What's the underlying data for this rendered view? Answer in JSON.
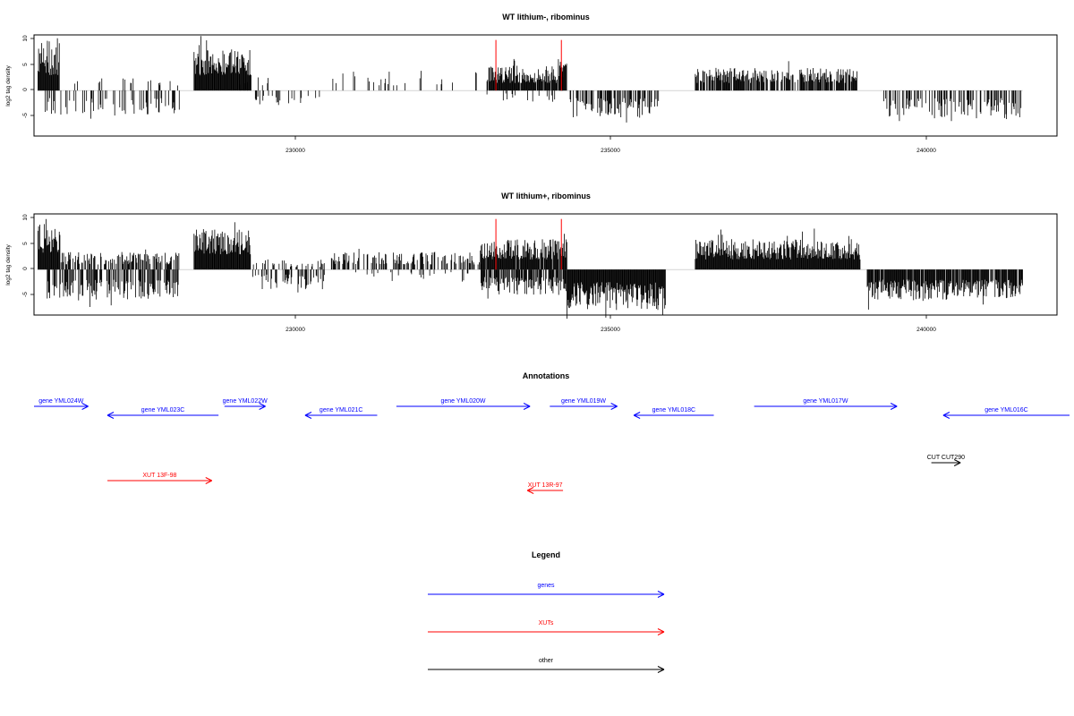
{
  "chart_data": [
    {
      "type": "bar",
      "title": "WT lithium-, ribominus",
      "ylabel": "log2 tag density",
      "xlim": [
        226500,
        241970
      ],
      "ylim": [
        -9,
        11
      ],
      "y_ticks": [
        "10",
        "5",
        "0",
        "-5"
      ],
      "x_ticks": [
        "230000",
        "235000",
        "240000"
      ],
      "grid": false,
      "marker_lines": {
        "x": [
          233485,
          234475
        ],
        "color": "#ff0000"
      },
      "blocks": [
        {
          "x": [
            226560,
            226890
          ],
          "y": [
            3,
            10
          ],
          "sign": 1,
          "density": 1.0
        },
        {
          "x": [
            226900,
            228700
          ],
          "y": [
            1,
            2.5
          ],
          "sign": 1,
          "density": 0.08
        },
        {
          "x": [
            226650,
            228700
          ],
          "y": [
            -1.5,
            -5
          ],
          "sign": -1,
          "density": 0.25
        },
        {
          "x": [
            228920,
            229790
          ],
          "y": [
            3,
            8
          ],
          "sign": 1,
          "density": 1.0
        },
        {
          "x": [
            229800,
            230200
          ],
          "y": [
            -1,
            -3
          ],
          "sign": -1,
          "density": 0.3
        },
        {
          "x": [
            229500,
            230200
          ],
          "y": [
            1,
            3
          ],
          "sign": 1,
          "density": 0.15
        },
        {
          "x": [
            230200,
            230900
          ],
          "y": [
            -1,
            -3
          ],
          "sign": -1,
          "density": 0.1
        },
        {
          "x": [
            231000,
            233200
          ],
          "y": [
            1,
            4
          ],
          "sign": 1,
          "density": 0.08
        },
        {
          "x": [
            233350,
            234500
          ],
          "y": [
            1.5,
            5
          ],
          "sign": 1,
          "density": 0.9
        },
        {
          "x": [
            233350,
            234400
          ],
          "y": [
            -0.5,
            -2.5
          ],
          "sign": -1,
          "density": 0.12
        },
        {
          "x": [
            234450,
            234560
          ],
          "y": [
            3,
            6
          ],
          "sign": 1,
          "density": 0.9
        },
        {
          "x": [
            234560,
            235950
          ],
          "y": [
            -1.5,
            -5.5
          ],
          "sign": -1,
          "density": 0.55
        },
        {
          "x": [
            236500,
            238950
          ],
          "y": [
            1.5,
            4.5
          ],
          "sign": 1,
          "density": 0.75
        },
        {
          "x": [
            239350,
            241450
          ],
          "y": [
            -1.5,
            -5.5
          ],
          "sign": -1,
          "density": 0.45
        }
      ]
    },
    {
      "type": "bar",
      "title": "WT lithium+, ribominus",
      "ylabel": "log2 tag density",
      "xlim": [
        226500,
        241970
      ],
      "ylim": [
        -9,
        11
      ],
      "y_ticks": [
        "10",
        "5",
        "0",
        "-5"
      ],
      "x_ticks": [
        "230000",
        "235000",
        "240000"
      ],
      "grid": false,
      "marker_lines": {
        "x": [
          233485,
          234475
        ],
        "color": "#ff0000"
      },
      "blocks": [
        {
          "x": [
            226560,
            226900
          ],
          "y": [
            3,
            9
          ],
          "sign": 1,
          "density": 1.0
        },
        {
          "x": [
            226900,
            228700
          ],
          "y": [
            1,
            3.5
          ],
          "sign": 1,
          "density": 0.55
        },
        {
          "x": [
            226700,
            228700
          ],
          "y": [
            -2,
            -6
          ],
          "sign": -1,
          "density": 0.6
        },
        {
          "x": [
            228920,
            229780
          ],
          "y": [
            3,
            8
          ],
          "sign": 1,
          "density": 1.0
        },
        {
          "x": [
            229780,
            230950
          ],
          "y": [
            0.5,
            2
          ],
          "sign": 1,
          "density": 0.35
        },
        {
          "x": [
            229800,
            230900
          ],
          "y": [
            -1,
            -4
          ],
          "sign": -1,
          "density": 0.45
        },
        {
          "x": [
            230950,
            233300
          ],
          "y": [
            1,
            3.5
          ],
          "sign": 1,
          "density": 0.45
        },
        {
          "x": [
            231300,
            233300
          ],
          "y": [
            -0.5,
            -2
          ],
          "sign": -1,
          "density": 0.12
        },
        {
          "x": [
            233250,
            234560
          ],
          "y": [
            2,
            6
          ],
          "sign": 1,
          "density": 0.95
        },
        {
          "x": [
            233250,
            234560
          ],
          "y": [
            -1.5,
            -5
          ],
          "sign": -1,
          "density": 0.7
        },
        {
          "x": [
            234560,
            236050
          ],
          "y": [
            -2.5,
            -8
          ],
          "sign": -1,
          "density": 1.0
        },
        {
          "x": [
            236500,
            239000
          ],
          "y": [
            2,
            6
          ],
          "sign": 1,
          "density": 1.0
        },
        {
          "x": [
            239100,
            241450
          ],
          "y": [
            -2,
            -6
          ],
          "sign": -1,
          "density": 0.9
        }
      ]
    }
  ],
  "annotations": {
    "title": "Annotations",
    "features": [
      {
        "label": "gene YML024W",
        "start": 226500,
        "end": 227320,
        "strand": "+",
        "color": "#0000ff",
        "row": 0
      },
      {
        "label": "gene YML023C",
        "start": 227610,
        "end": 229290,
        "strand": "-",
        "color": "#0000ff",
        "row": 1
      },
      {
        "label": "gene YML022W",
        "start": 229380,
        "end": 230000,
        "strand": "+",
        "color": "#0000ff",
        "row": 0
      },
      {
        "label": "gene YML021C",
        "start": 230600,
        "end": 231690,
        "strand": "-",
        "color": "#0000ff",
        "row": 1
      },
      {
        "label": "gene YML020W",
        "start": 231980,
        "end": 234000,
        "strand": "+",
        "color": "#0000ff",
        "row": 0
      },
      {
        "label": "gene YML019W",
        "start": 234300,
        "end": 235320,
        "strand": "+",
        "color": "#0000ff",
        "row": 0
      },
      {
        "label": "gene YML018C",
        "start": 235570,
        "end": 236780,
        "strand": "-",
        "color": "#0000ff",
        "row": 1
      },
      {
        "label": "gene YML017W",
        "start": 237390,
        "end": 239550,
        "strand": "+",
        "color": "#0000ff",
        "row": 0
      },
      {
        "label": "gene YML016C",
        "start": 240250,
        "end": 242370,
        "strand": "-",
        "color": "#0000ff",
        "row": 1
      },
      {
        "label": "CUT CUT290",
        "start": 240070,
        "end": 240510,
        "strand": "+",
        "color": "#000000",
        "row": 2
      },
      {
        "label": "XUT 13F-98",
        "start": 227610,
        "end": 229190,
        "strand": "+",
        "color": "#ff0000",
        "row": 3
      },
      {
        "label": "XUT 13R-97",
        "start": 233960,
        "end": 234500,
        "strand": "-",
        "color": "#ff0000",
        "row": 4
      }
    ]
  },
  "legend": {
    "title": "Legend",
    "items": [
      {
        "label": "genes",
        "color": "#0000ff"
      },
      {
        "label": "XUTs",
        "color": "#ff0000"
      },
      {
        "label": "other",
        "color": "#000000"
      }
    ]
  }
}
